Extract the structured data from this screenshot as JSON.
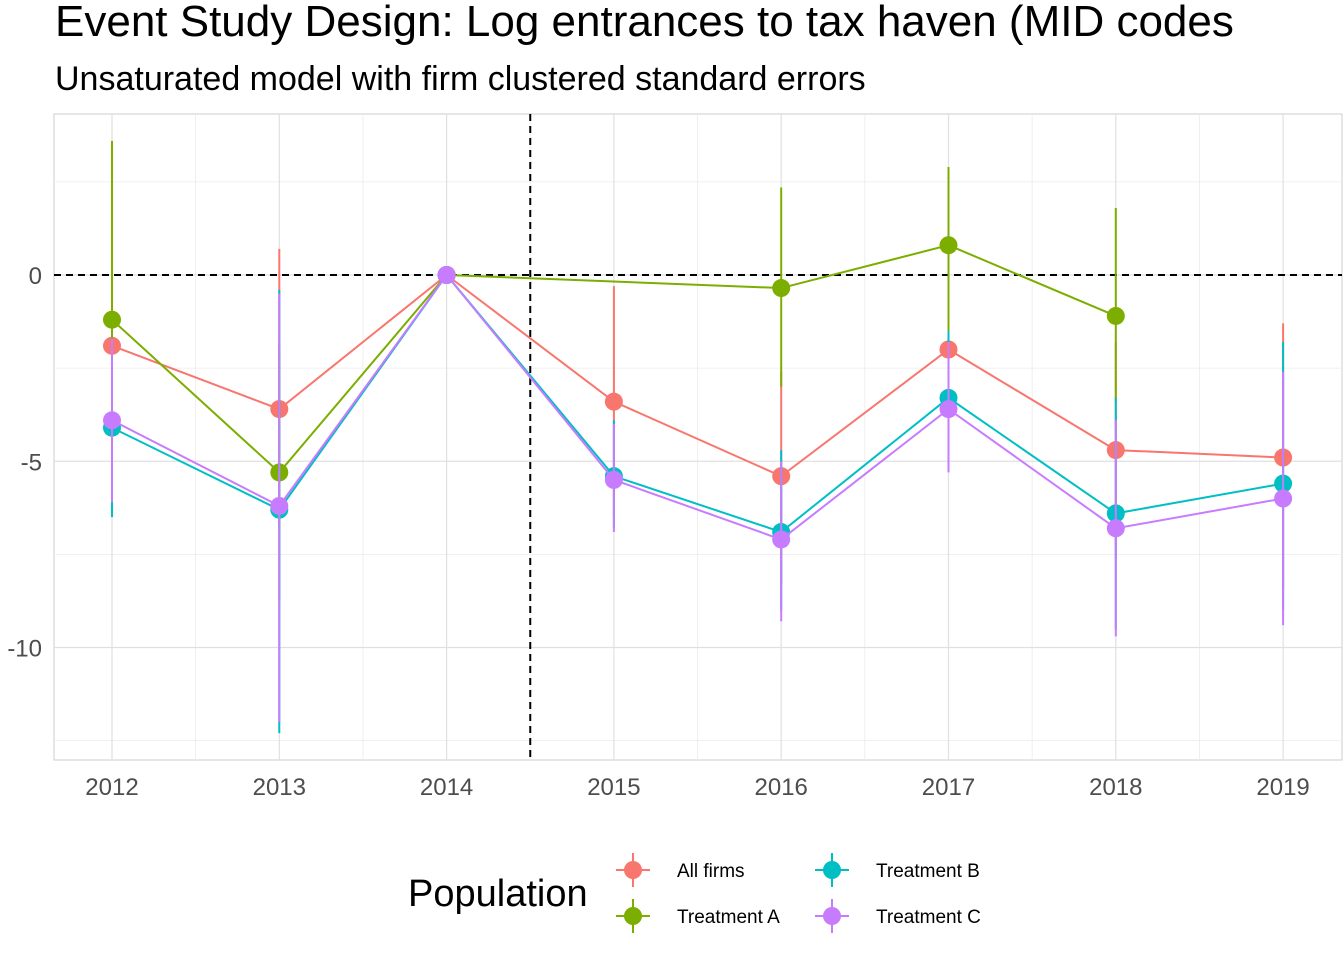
{
  "chart_data": {
    "type": "line",
    "title": "Event Study Design: Log entrances to tax haven (MID codes",
    "subtitle": "Unsaturated model with firm clustered standard errors",
    "xlabel": "",
    "ylabel": "",
    "categories": [
      "2012",
      "2013",
      "2014",
      "2015",
      "2016",
      "2017",
      "2018",
      "2019"
    ],
    "x_tick_labels": [
      "2012",
      "2013",
      "2014",
      "2015",
      "2016",
      "2017",
      "2018",
      "2019"
    ],
    "y_tick_labels": [
      "0",
      "-5",
      "-10"
    ],
    "y_ticks": [
      0,
      -5,
      -10
    ],
    "ylim": [
      -13,
      4.3
    ],
    "reference_lines": {
      "horizontal_y": 0,
      "vertical_between": [
        "2014",
        "2015"
      ],
      "style": "dashed"
    },
    "grid": true,
    "legend_position": "bottom",
    "legend_title": "Population",
    "series": [
      {
        "name": "All firms",
        "color": "#F8766D",
        "values": [
          -1.9,
          -3.6,
          0,
          -3.4,
          -5.4,
          -2.0,
          -4.7,
          -4.9
        ],
        "lower": [
          -4.0,
          -6.8,
          0,
          -6.5,
          -8.3,
          -4.5,
          -7.6,
          -8.4
        ],
        "upper": [
          0.0,
          0.7,
          0,
          -0.3,
          -2.6,
          0.5,
          -1.8,
          -1.3
        ]
      },
      {
        "name": "Treatment A",
        "color": "#7CAE00",
        "values": [
          -1.2,
          -5.3,
          0,
          null,
          -0.35,
          0.8,
          -1.1,
          null
        ],
        "lower": [
          -4.5,
          -8.7,
          0,
          null,
          -3.0,
          -1.5,
          -3.4,
          null
        ],
        "upper": [
          3.6,
          -1.9,
          0,
          null,
          2.35,
          2.9,
          1.8,
          null
        ]
      },
      {
        "name": "Treatment B",
        "color": "#00BFC4",
        "values": [
          -4.1,
          -6.3,
          0,
          -5.4,
          -6.9,
          -3.3,
          -6.4,
          -5.6
        ],
        "lower": [
          -6.5,
          -12.3,
          0,
          -6.8,
          -9.0,
          -5.0,
          -9.5,
          -9.0
        ],
        "upper": [
          -1.8,
          -0.4,
          0,
          -3.9,
          -4.7,
          -1.5,
          -3.3,
          -1.8
        ]
      },
      {
        "name": "Treatment C",
        "color": "#C77CFF",
        "values": [
          -3.9,
          -6.2,
          0,
          -5.5,
          -7.1,
          -3.6,
          -6.8,
          -6.0
        ],
        "lower": [
          -6.1,
          -12.0,
          0,
          -6.9,
          -9.3,
          -5.3,
          -9.7,
          -9.4
        ],
        "upper": [
          -1.7,
          -0.5,
          0,
          -4.0,
          -5.0,
          -1.8,
          -3.9,
          -2.6
        ]
      }
    ],
    "connecting_lines": [
      {
        "series": "Treatment A",
        "points": [
          [
            "2012",
            -1.2
          ],
          [
            "2013",
            -5.3
          ],
          [
            "2014",
            0
          ],
          [
            "2016",
            -0.35
          ],
          [
            "2017",
            0.8
          ],
          [
            "2018",
            -1.1
          ]
        ]
      }
    ]
  }
}
